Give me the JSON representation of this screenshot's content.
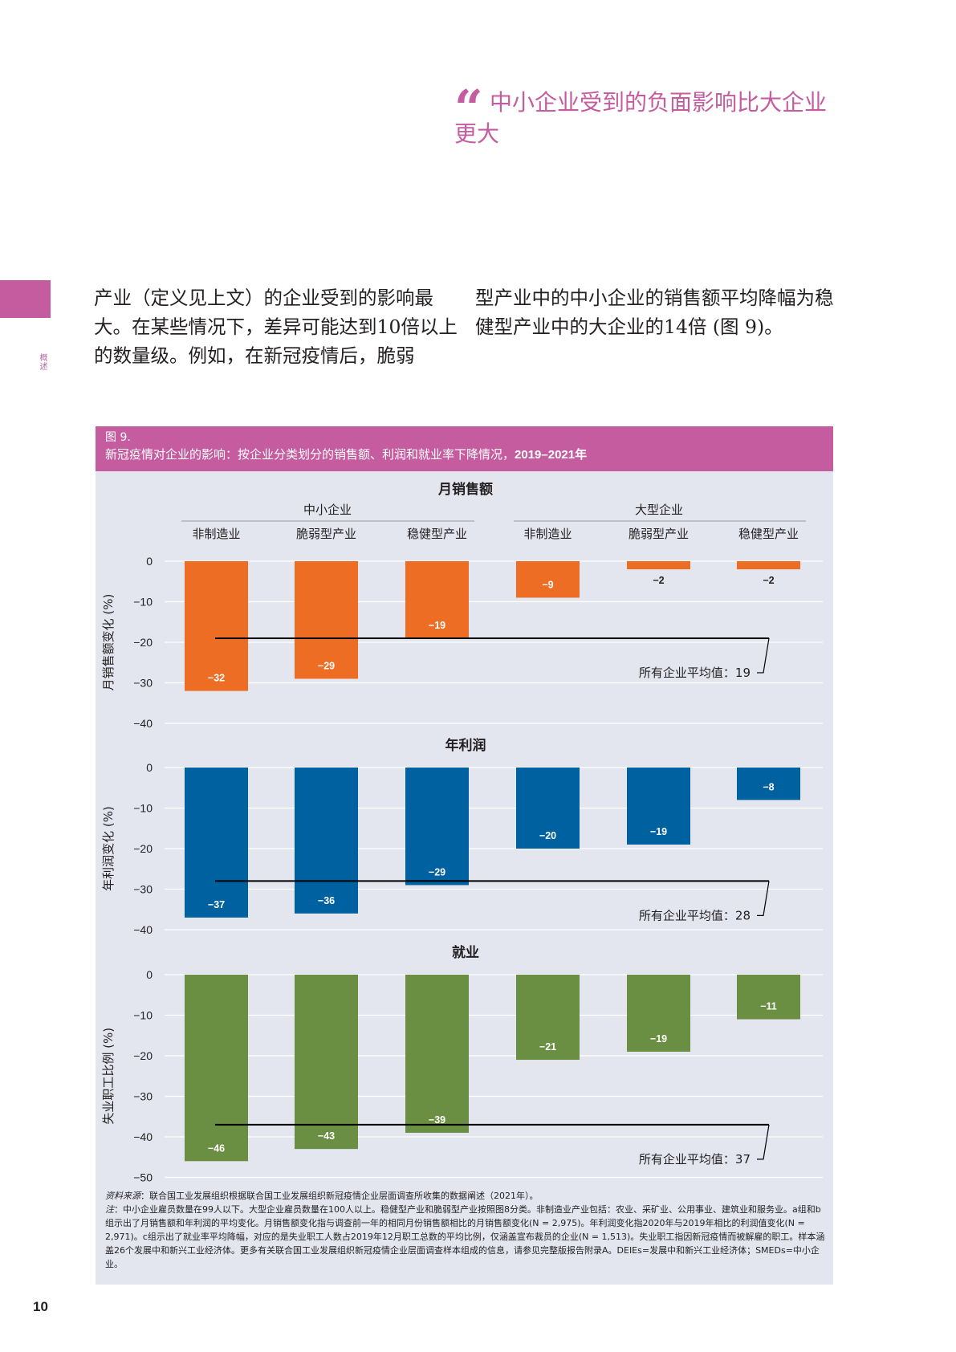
{
  "quote": {
    "mark": "“",
    "text": "中小企业受到的负面影响比大企业更大"
  },
  "side_label": "概述",
  "body": {
    "col1": "产业（定义见上文）的企业受到的影响最大。在某些情况下，差异可能达到10倍以上的数量级。例如，在新冠疫情后，脆弱",
    "col2": "型产业中的中小企业的销售额平均降幅为稳健型产业中的大企业的14倍 (图 9)。"
  },
  "figure": {
    "number": "图 9.",
    "title_prefix": "新冠疫情对企业的影响：按企业分类划分的销售额、利润和就业率下降情况，",
    "title_years": "2019–2021年"
  },
  "chart_data": {
    "type": "bar",
    "groups": [
      "中小企业",
      "大型企业"
    ],
    "categories": [
      "非制造业",
      "脆弱型产业",
      "稳健型产业",
      "非制造业",
      "脆弱型产业",
      "稳健型产业"
    ],
    "panels": [
      {
        "title": "月销售额",
        "ylabel": "月销售额变化 (%)",
        "ylim": [
          -40,
          0
        ],
        "ticks": [
          "0",
          "−10",
          "−20",
          "−30",
          "−40"
        ],
        "color": "#ee6d24",
        "values": [
          -32,
          -29,
          -19,
          -9,
          -2,
          -2
        ],
        "labels": [
          "−32",
          "−29",
          "−19",
          "−9",
          "−2",
          "−2"
        ],
        "average": -19,
        "average_label": "所有企业平均值：19"
      },
      {
        "title": "年利润",
        "ylabel": "年利润变化 (%)",
        "ylim": [
          -40,
          0
        ],
        "ticks": [
          "0",
          "−10",
          "−20",
          "−30",
          "−40"
        ],
        "color": "#0061a0",
        "values": [
          -37,
          -36,
          -29,
          -20,
          -19,
          -8
        ],
        "labels": [
          "−37",
          "−36",
          "−29",
          "−20",
          "−19",
          "−8"
        ],
        "average": -28,
        "average_label": "所有企业平均值：28"
      },
      {
        "title": "就业",
        "ylabel": "失业职工比例 (%)",
        "ylim": [
          -50,
          0
        ],
        "ticks": [
          "0",
          "−10",
          "−20",
          "−30",
          "−40",
          "−50"
        ],
        "color": "#6a8f43",
        "values": [
          -46,
          -43,
          -39,
          -21,
          -19,
          -11
        ],
        "labels": [
          "−46",
          "−43",
          "−39",
          "−21",
          "−19",
          "−11"
        ],
        "average": -37,
        "average_label": "所有企业平均值：37"
      }
    ]
  },
  "notes": {
    "source_label": "资料来源",
    "source": "：联合国工业发展组织根据联合国工业发展组织新冠疫情企业层面调查所收集的数据阐述（2021年）。",
    "note_label": "注",
    "note": "：中小企业雇员数量在99人以下。大型企业雇员数量在100人以上。稳健型产业和脆弱型产业按照图8分类。非制造业产业包括：农业、采矿业、公用事业、建筑业和服务业。a组和b组示出了月销售额和年利润的平均变化。月销售额变化指与调查前一年的相同月份销售额相比的月销售额变化(N = 2,975)。年利润变化指2020年与2019年相比的利润值变化(N = 2,971)。c组示出了就业率平均降幅，对应的是失业职工人数占2019年12月职工总数的平均比例，仅涵盖宣布裁员的企业(N = 1,513)。失业职工指因新冠疫情而被解雇的职工。样本涵盖26个发展中和新兴工业经济体。更多有关联合国工业发展组织新冠疫情企业层面调查样本组成的信息，请参见完整版报告附录A。DEIEs=发展中和新兴工业经济体；SMEDs=中小企业。"
  },
  "page_number": "10"
}
